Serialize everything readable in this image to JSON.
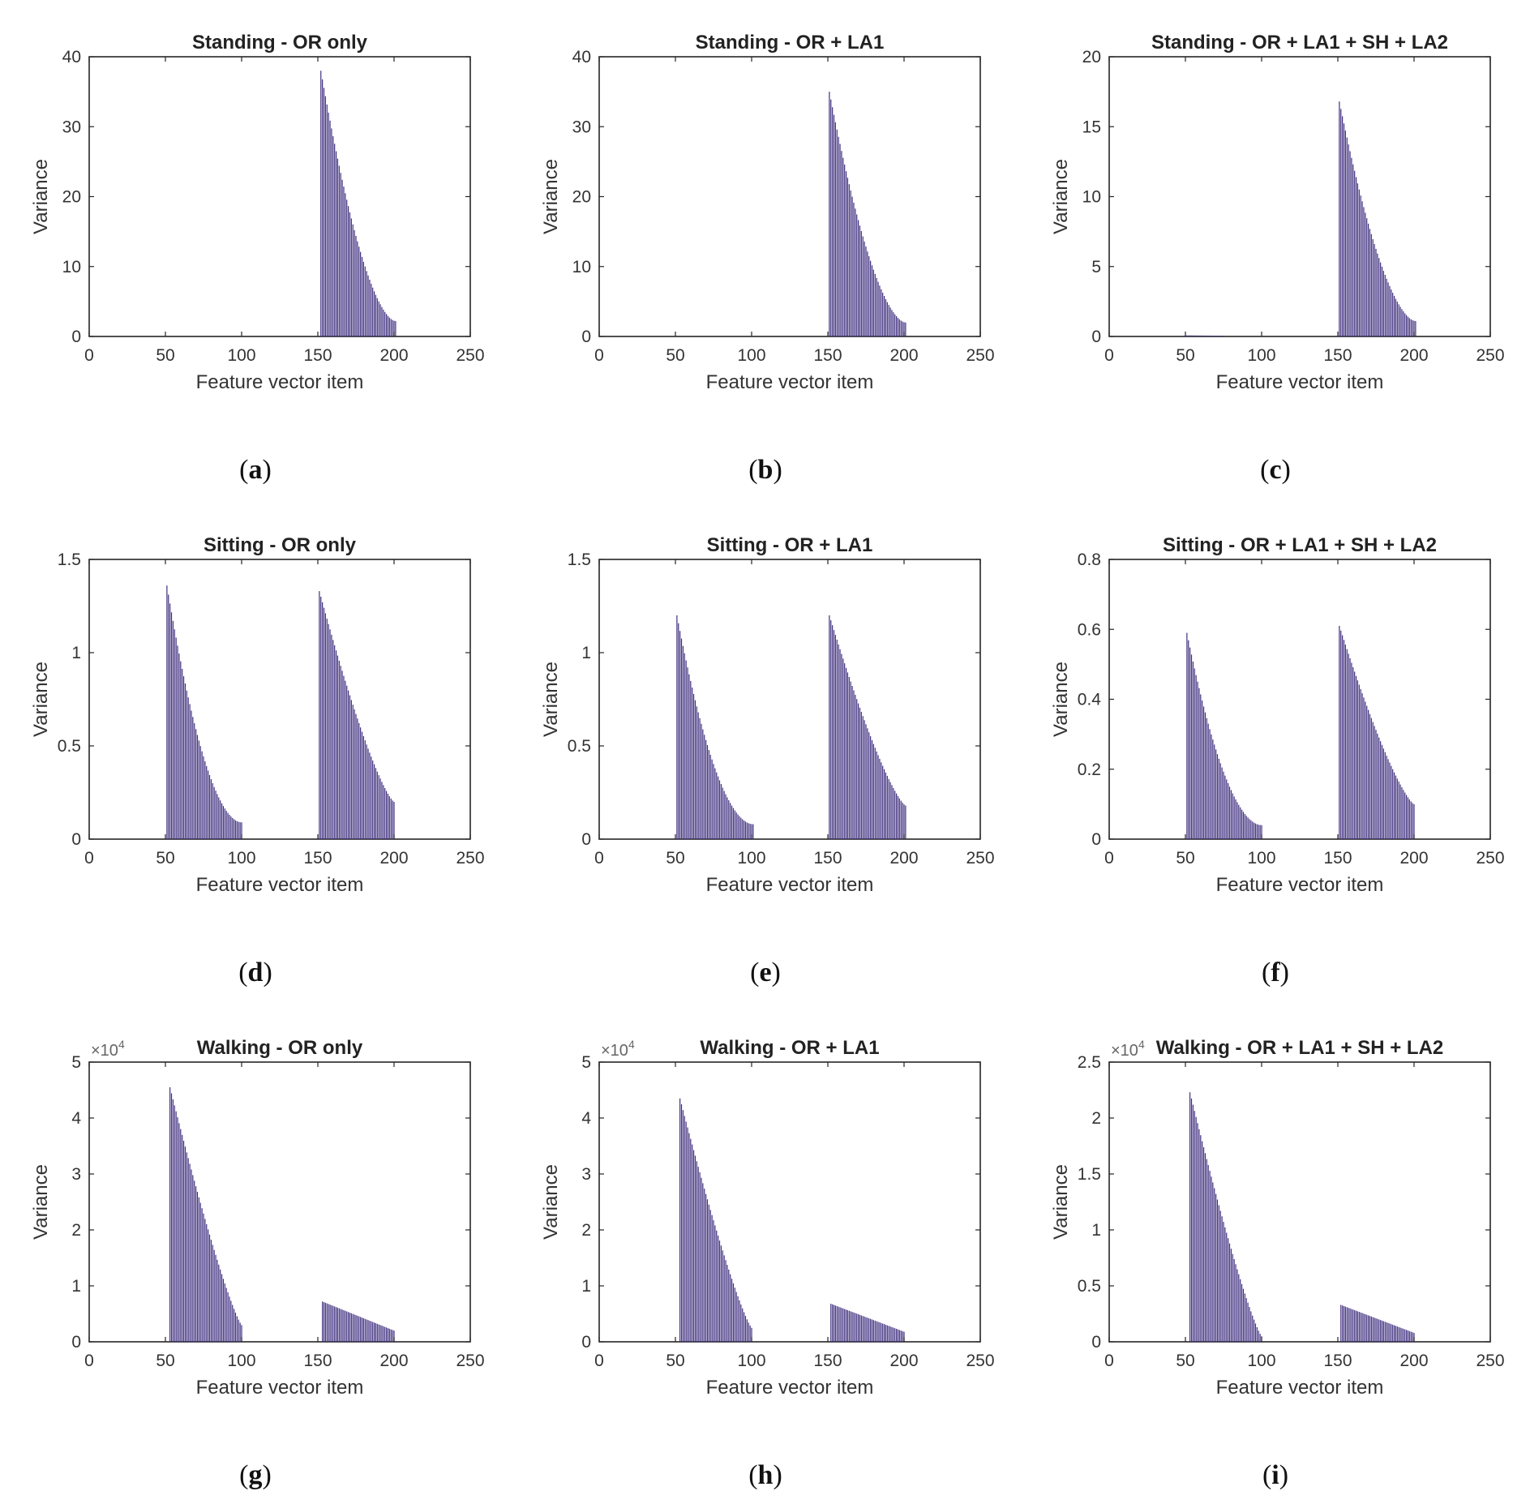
{
  "chart_data": [
    {
      "id": "a",
      "type": "bar",
      "caption": "a",
      "title": "Standing - OR only",
      "xlabel": "Feature vector item",
      "ylabel": "Variance",
      "xlim": [
        0,
        250
      ],
      "ylim": [
        0,
        40
      ],
      "xticks": [
        "0",
        "50",
        "100",
        "150",
        "200",
        "250"
      ],
      "yticks": [
        "0",
        "10",
        "20",
        "30",
        "40"
      ],
      "exponent": "",
      "bar_color": "#3b2a7c",
      "groups": [
        {
          "start": 152,
          "end": 201,
          "peak": 38,
          "tail": 2.2,
          "exp": 1.7
        }
      ]
    },
    {
      "id": "b",
      "type": "bar",
      "caption": "b",
      "title": "Standing - OR + LA1",
      "xlabel": "Feature vector item",
      "ylabel": "Variance",
      "xlim": [
        0,
        250
      ],
      "ylim": [
        0,
        40
      ],
      "xticks": [
        "0",
        "50",
        "100",
        "150",
        "200",
        "250"
      ],
      "yticks": [
        "0",
        "10",
        "20",
        "30",
        "40"
      ],
      "exponent": "",
      "bar_color": "#3b2a7c",
      "groups": [
        {
          "start": 151,
          "end": 201,
          "peak": 35,
          "tail": 2.0,
          "exp": 1.7
        }
      ]
    },
    {
      "id": "c",
      "type": "bar",
      "caption": "c",
      "title": "Standing - OR + LA1 + SH + LA2",
      "xlabel": "Feature vector item",
      "ylabel": "Variance",
      "xlim": [
        0,
        250
      ],
      "ylim": [
        0,
        20
      ],
      "xticks": [
        "0",
        "50",
        "100",
        "150",
        "200",
        "250"
      ],
      "yticks": [
        "0",
        "5",
        "10",
        "15",
        "20"
      ],
      "exponent": "",
      "bar_color": "#3b2a7c",
      "groups": [
        {
          "start": 50,
          "end": 75,
          "peak": 0.08,
          "tail": 0.05,
          "exp": 1.0
        },
        {
          "start": 151,
          "end": 201,
          "peak": 16.8,
          "tail": 1.1,
          "exp": 1.7
        }
      ]
    },
    {
      "id": "d",
      "type": "bar",
      "caption": "d",
      "title": "Sitting - OR only",
      "xlabel": "Feature vector item",
      "ylabel": "Variance",
      "xlim": [
        0,
        250
      ],
      "ylim": [
        0,
        1.5
      ],
      "xticks": [
        "0",
        "50",
        "100",
        "150",
        "200",
        "250"
      ],
      "yticks": [
        "0",
        "0.5",
        "1",
        "1.5"
      ],
      "exponent": "",
      "bar_color": "#3b2a7c",
      "groups": [
        {
          "start": 51,
          "end": 100,
          "peak": 1.36,
          "tail": 0.09,
          "exp": 1.9
        },
        {
          "start": 151,
          "end": 200,
          "peak": 1.33,
          "tail": 0.2,
          "exp": 1.3
        }
      ]
    },
    {
      "id": "e",
      "type": "bar",
      "caption": "e",
      "title": "Sitting - OR + LA1",
      "xlabel": "Feature vector item",
      "ylabel": "Variance",
      "xlim": [
        0,
        250
      ],
      "ylim": [
        0,
        1.5
      ],
      "xticks": [
        "0",
        "50",
        "100",
        "150",
        "200",
        "250"
      ],
      "yticks": [
        "0",
        "0.5",
        "1",
        "1.5"
      ],
      "exponent": "",
      "bar_color": "#3b2a7c",
      "groups": [
        {
          "start": 51,
          "end": 101,
          "peak": 1.2,
          "tail": 0.08,
          "exp": 1.9
        },
        {
          "start": 151,
          "end": 201,
          "peak": 1.2,
          "tail": 0.18,
          "exp": 1.3
        }
      ]
    },
    {
      "id": "f",
      "type": "bar",
      "caption": "f",
      "title": "Sitting - OR + LA1 + SH + LA2",
      "xlabel": "Feature vector item",
      "ylabel": "Variance",
      "xlim": [
        0,
        250
      ],
      "ylim": [
        0,
        0.8
      ],
      "xticks": [
        "0",
        "50",
        "100",
        "150",
        "200",
        "250"
      ],
      "yticks": [
        "0",
        "0.2",
        "0.4",
        "0.6",
        "0.8"
      ],
      "exponent": "",
      "bar_color": "#3b2a7c",
      "groups": [
        {
          "start": 51,
          "end": 100,
          "peak": 0.59,
          "tail": 0.04,
          "exp": 1.9
        },
        {
          "start": 151,
          "end": 200,
          "peak": 0.61,
          "tail": 0.1,
          "exp": 1.3
        }
      ]
    },
    {
      "id": "g",
      "type": "bar",
      "caption": "g",
      "title": "Walking - OR only",
      "xlabel": "Feature vector item",
      "ylabel": "Variance",
      "xlim": [
        0,
        250
      ],
      "ylim": [
        0,
        5
      ],
      "xticks": [
        "0",
        "50",
        "100",
        "150",
        "200",
        "250"
      ],
      "yticks": [
        "0",
        "1",
        "2",
        "3",
        "4",
        "5"
      ],
      "exponent": "4",
      "bar_color": "#3b2a7c",
      "groups": [
        {
          "start": 53,
          "end": 100,
          "peak": 4.55,
          "tail": 0.3,
          "exp": 1.2
        },
        {
          "start": 153,
          "end": 200,
          "peak": 0.72,
          "tail": 0.2,
          "exp": 1.0
        }
      ]
    },
    {
      "id": "h",
      "type": "bar",
      "caption": "h",
      "title": "Walking - OR + LA1",
      "xlabel": "Feature vector item",
      "ylabel": "Variance",
      "xlim": [
        0,
        250
      ],
      "ylim": [
        0,
        5
      ],
      "xticks": [
        "0",
        "50",
        "100",
        "150",
        "200",
        "250"
      ],
      "yticks": [
        "0",
        "1",
        "2",
        "3",
        "4",
        "5"
      ],
      "exponent": "4",
      "bar_color": "#3b2a7c",
      "groups": [
        {
          "start": 53,
          "end": 100,
          "peak": 4.35,
          "tail": 0.25,
          "exp": 1.2
        },
        {
          "start": 152,
          "end": 200,
          "peak": 0.68,
          "tail": 0.18,
          "exp": 1.0
        }
      ]
    },
    {
      "id": "i",
      "type": "bar",
      "caption": "i",
      "title": "Walking - OR + LA1 + SH + LA2",
      "xlabel": "Feature vector item",
      "ylabel": "Variance",
      "xlim": [
        0,
        250
      ],
      "ylim": [
        0,
        2.5
      ],
      "xticks": [
        "0",
        "50",
        "100",
        "150",
        "200",
        "250"
      ],
      "yticks": [
        "0",
        "0.5",
        "1",
        "1.5",
        "2",
        "2.5"
      ],
      "exponent": "4",
      "bar_color": "#3b2a7c",
      "groups": [
        {
          "start": 53,
          "end": 100,
          "peak": 2.23,
          "tail": 0.05,
          "exp": 1.2
        },
        {
          "start": 152,
          "end": 200,
          "peak": 0.33,
          "tail": 0.08,
          "exp": 1.0
        }
      ]
    }
  ]
}
